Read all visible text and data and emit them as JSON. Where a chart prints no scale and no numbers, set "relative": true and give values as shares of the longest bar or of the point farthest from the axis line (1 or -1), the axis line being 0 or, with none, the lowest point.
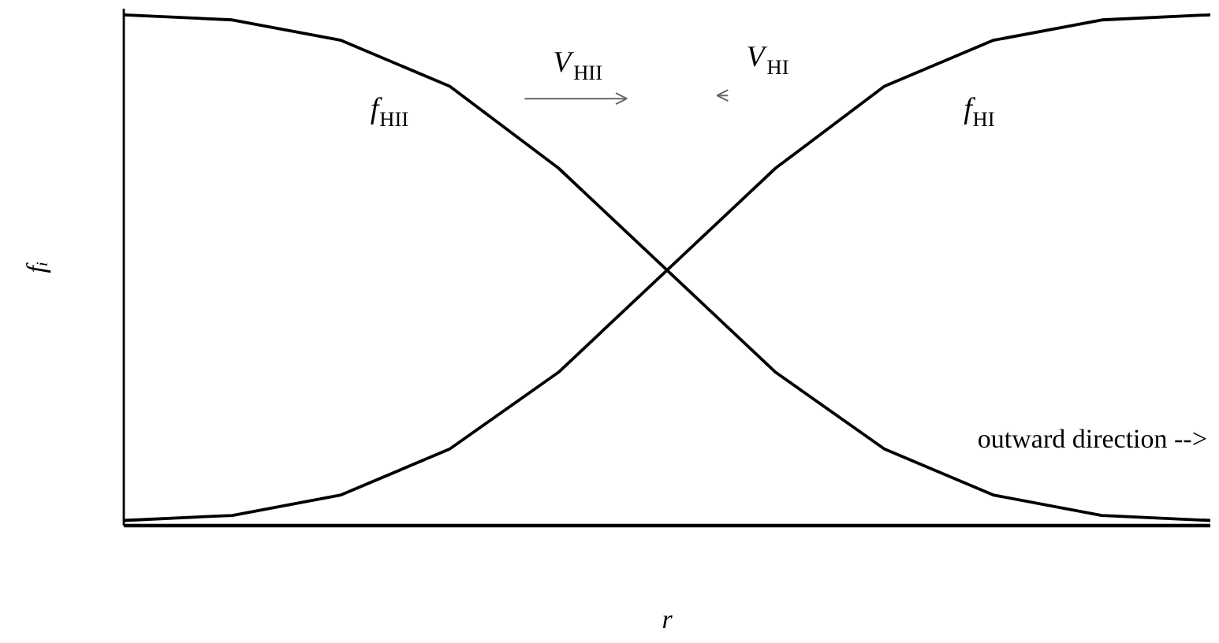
{
  "chart_data": {
    "type": "line",
    "relative": true,
    "xlabel": "r",
    "ylabel": "fᵢ",
    "line_style": "solid",
    "categories": [
      null,
      null,
      null,
      null,
      null,
      null,
      null,
      null,
      null,
      null,
      null
    ],
    "series": [
      {
        "name": "f$_{HII}$",
        "color": "#000000",
        "values": [
          1.0,
          0.99,
          0.95,
          0.86,
          0.7,
          0.5,
          0.3,
          0.15,
          0.06,
          0.02,
          0.01
        ]
      },
      {
        "name": "f$_{HI}$",
        "color": "#000000",
        "values": [
          0.01,
          0.02,
          0.06,
          0.15,
          0.3,
          0.5,
          0.7,
          0.86,
          0.95,
          0.99,
          1.0
        ]
      }
    ],
    "annotations": [
      "V$_{HII}$",
      "V$_{HI}$",
      "outward direction -->"
    ]
  }
}
